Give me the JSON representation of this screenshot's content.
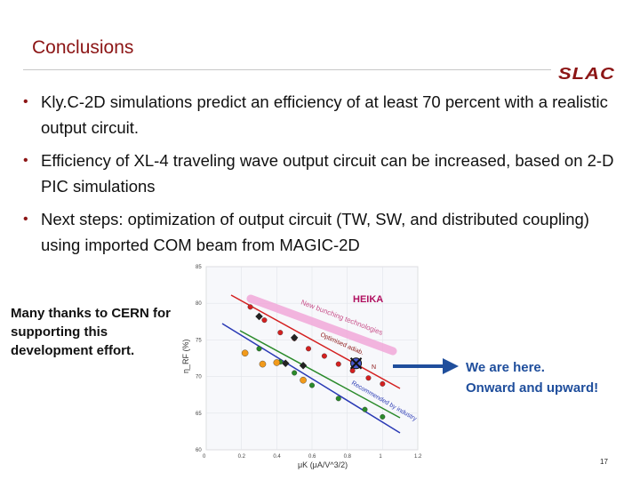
{
  "slide": {
    "title": "Conclusions",
    "logo_text": "SLAC",
    "bullets": [
      "Kly.C-2D simulations predict an efficiency of at least 70 percent with a realistic output circuit.",
      "Efficiency of XL-4 traveling wave output circuit can be increased, based on 2-D PIC simulations",
      "Next steps: optimization of output circuit (TW, SW, and distributed coupling) using imported COM beam from MAGIC-2D"
    ],
    "thanks_text": "Many thanks to CERN for supporting this development effort.",
    "callout_line1": "We are here.",
    "callout_line2": "Onward and upward!",
    "page_number": "17"
  },
  "colors": {
    "accent": "#8c1515",
    "callout": "#1f4e9c"
  },
  "chart_data": {
    "type": "scatter",
    "xlabel": "μK (μA/V^3/2)",
    "ylabel": "η_RF (%)",
    "xlim": [
      0,
      1.2
    ],
    "ylim": [
      60,
      85
    ],
    "x_ticks": [
      "0",
      "0.2",
      "0.4",
      "0.6",
      "0.8",
      "1",
      "1.2"
    ],
    "y_ticks": [
      "60",
      "65",
      "70",
      "75",
      "80",
      "85"
    ],
    "annotations": [
      "HEIKA",
      "New bunching technologies",
      "Optimised adiab.",
      "Recommended by industry",
      "N"
    ],
    "series": [
      {
        "color": "#d42020",
        "points": [
          [
            0.25,
            79.5
          ],
          [
            0.33,
            77.7
          ],
          [
            0.42,
            76.0
          ],
          [
            0.5,
            75.2
          ],
          [
            0.58,
            73.8
          ],
          [
            0.67,
            72.8
          ],
          [
            0.75,
            71.7
          ],
          [
            0.83,
            70.8
          ],
          [
            0.92,
            69.8
          ],
          [
            1.0,
            69.0
          ]
        ]
      },
      {
        "color": "#2a8a2a",
        "points": [
          [
            0.3,
            73.8
          ],
          [
            0.42,
            72.0
          ],
          [
            0.5,
            70.5
          ],
          [
            0.6,
            68.8
          ],
          [
            0.75,
            67.0
          ],
          [
            0.9,
            65.5
          ],
          [
            1.0,
            64.5
          ]
        ]
      },
      {
        "color": "#f29a1a",
        "points": [
          [
            0.22,
            73.2
          ],
          [
            0.32,
            71.7
          ],
          [
            0.4,
            71.9
          ],
          [
            0.55,
            69.5
          ]
        ]
      },
      {
        "color": "#222222",
        "points": [
          [
            0.3,
            78.2
          ],
          [
            0.5,
            75.3
          ],
          [
            0.45,
            71.8
          ],
          [
            0.55,
            71.5
          ]
        ]
      },
      {
        "color": "#2a3ab5",
        "points": [
          [
            0.85,
            71.8
          ]
        ]
      }
    ]
  }
}
